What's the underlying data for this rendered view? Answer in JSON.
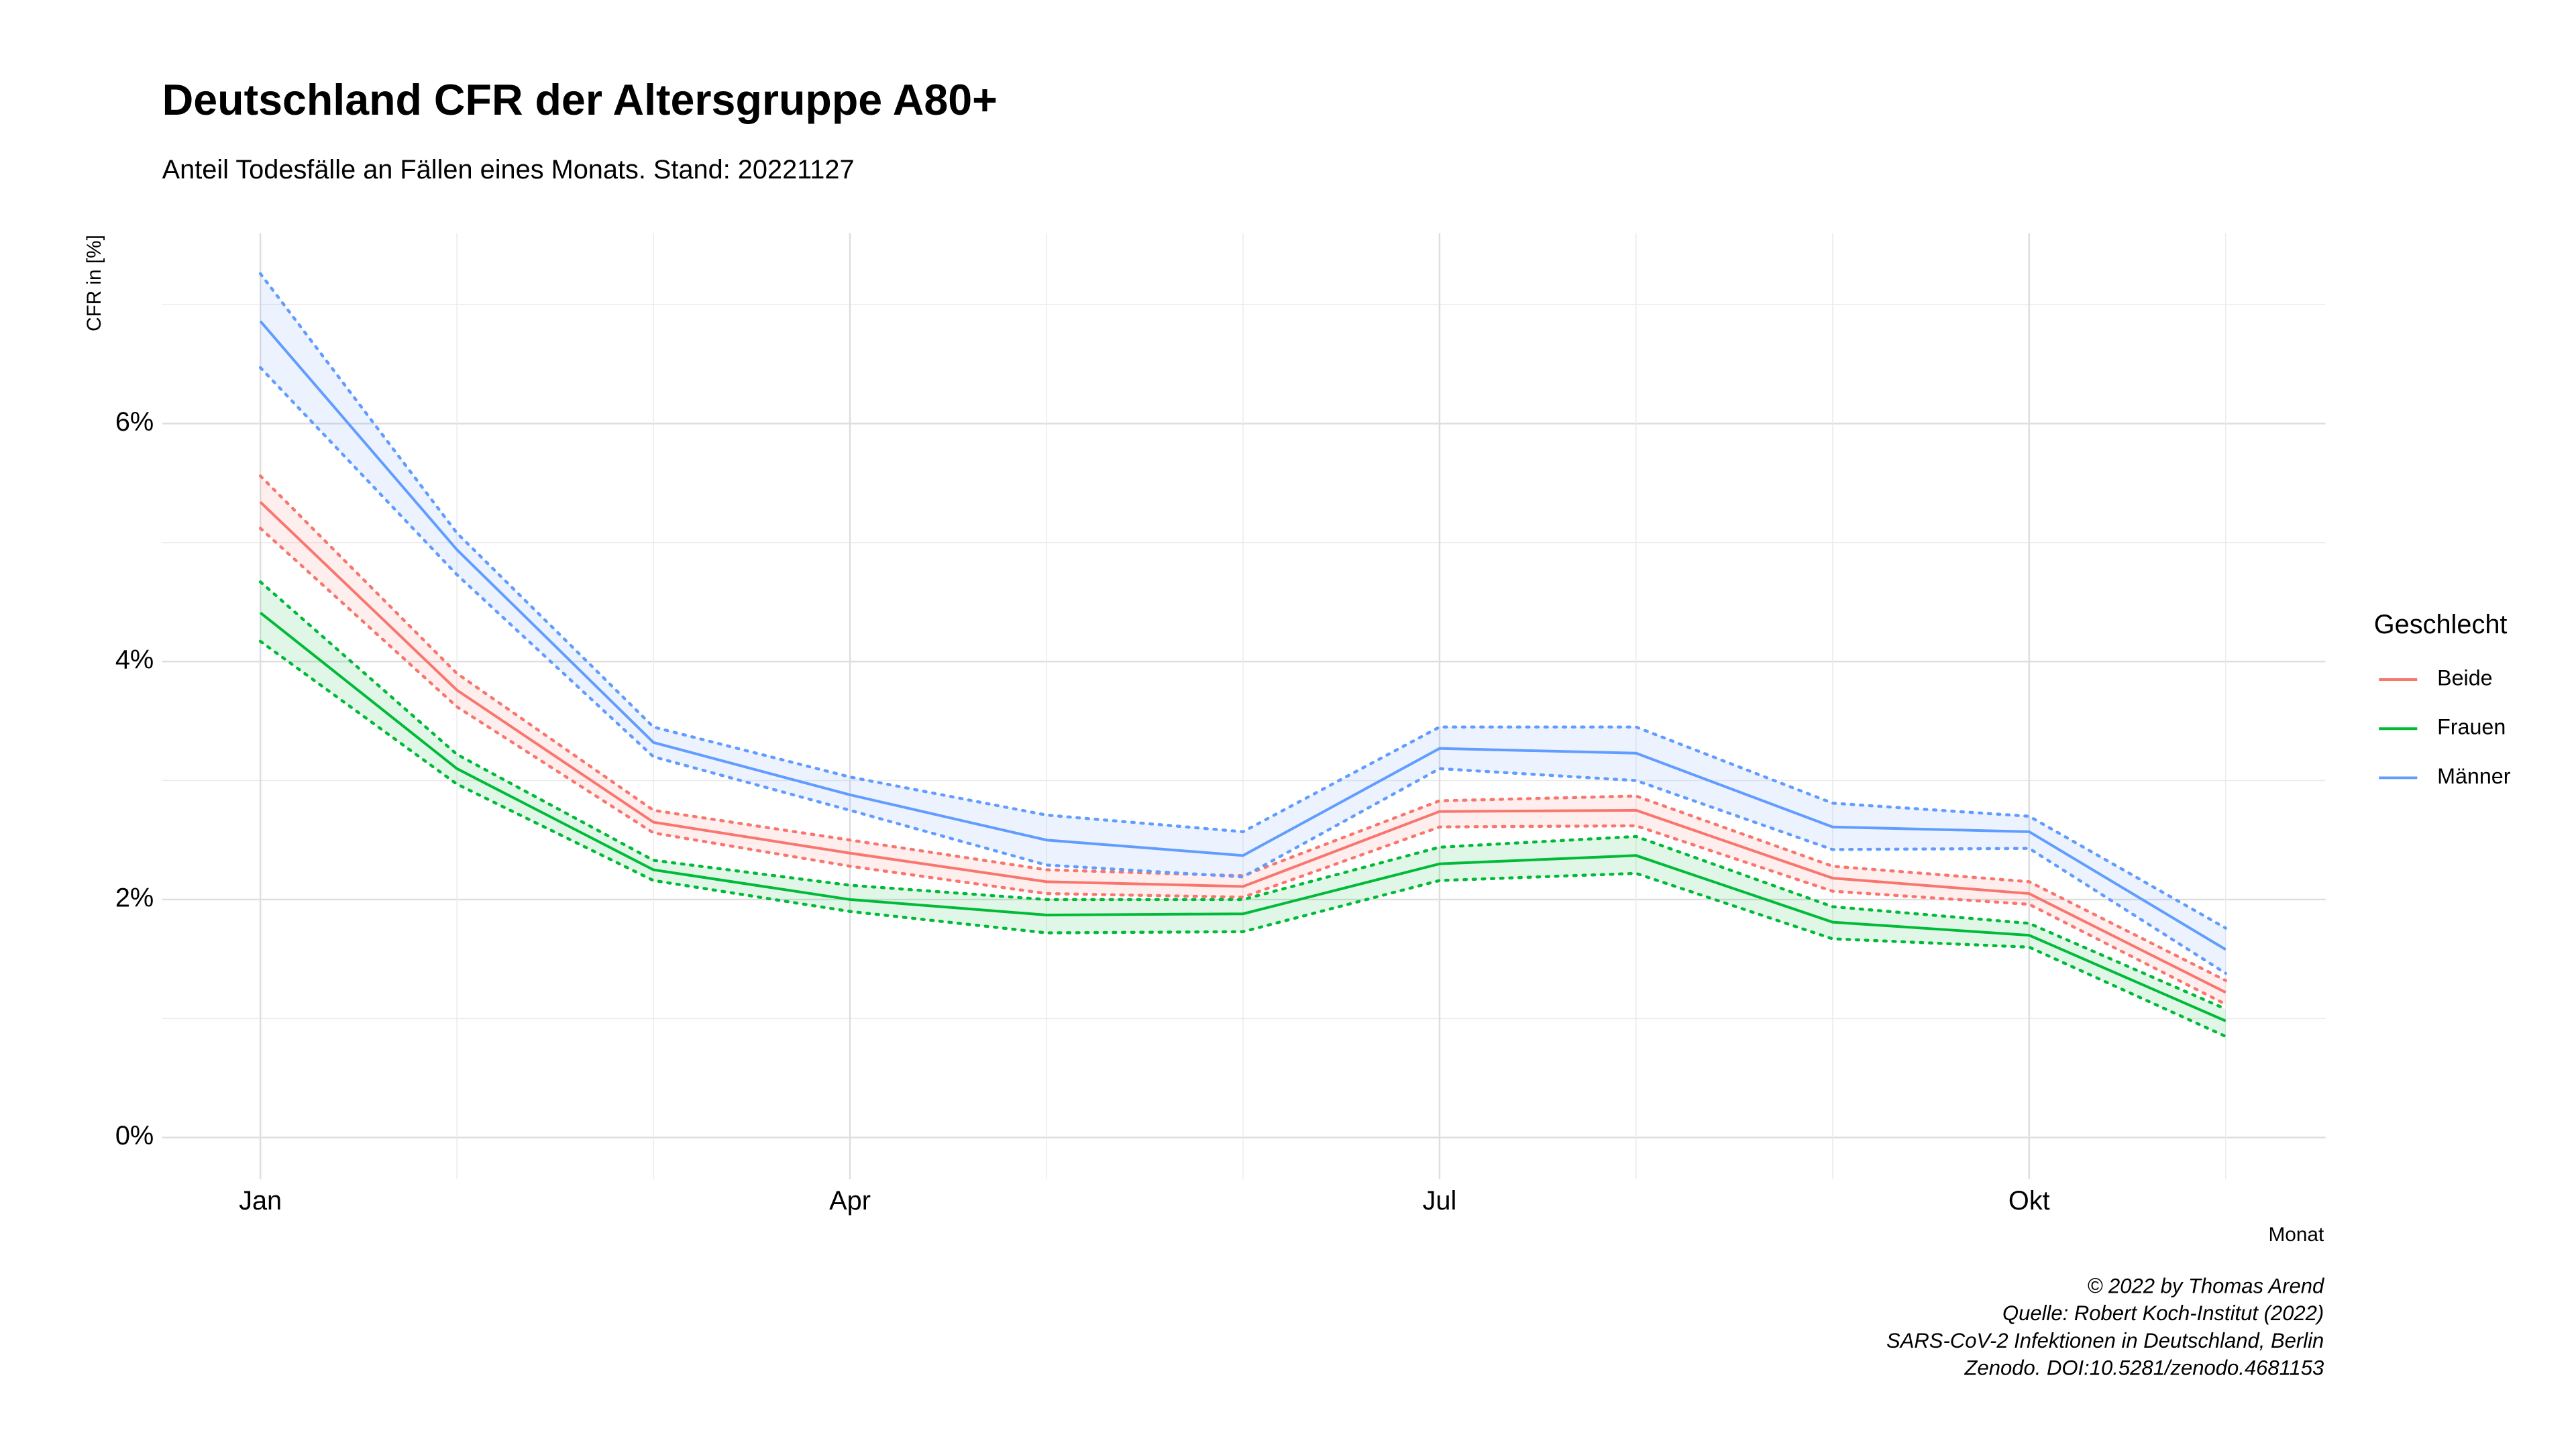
{
  "chart_data": {
    "type": "line",
    "title": "Deutschland CFR der Altersgruppe A80+",
    "subtitle": "Anteil Todesfälle an Fällen eines Monats. Stand: 20221127",
    "y_label": "CFR in [%]",
    "x_label": "Monat",
    "legend_title": "Geschlecht",
    "caption": [
      "© 2022 by Thomas Arend",
      "Quelle: Robert Koch-Institut (2022)",
      "SARS-CoV-2 Infektionen in Deutschland, Berlin",
      "Zenodo. DOI:10.5281/zenodo.4681153"
    ],
    "categories": [
      "Jan",
      null,
      null,
      "Apr",
      null,
      null,
      "Jul",
      null,
      null,
      "Okt",
      null
    ],
    "ylim": [
      -0.35,
      7.6
    ],
    "yticks": [
      {
        "value": 0,
        "label": "0%"
      },
      {
        "value": 2,
        "label": "2%"
      },
      {
        "value": 4,
        "label": "4%"
      },
      {
        "value": 6,
        "label": "6%"
      }
    ],
    "y_minor_ticks": [
      1,
      3,
      5,
      7
    ],
    "grid": true,
    "legend": "right",
    "series": [
      {
        "name": "Beide",
        "color": "#F8766D",
        "values": [
          5.34,
          3.76,
          2.65,
          2.39,
          2.15,
          2.11,
          2.74,
          2.75,
          2.18,
          2.05,
          1.22
        ],
        "upper": [
          5.56,
          3.9,
          2.75,
          2.5,
          2.25,
          2.2,
          2.83,
          2.87,
          2.28,
          2.15,
          1.32
        ],
        "lower": [
          5.12,
          3.62,
          2.56,
          2.28,
          2.05,
          2.02,
          2.61,
          2.62,
          2.07,
          1.96,
          1.12
        ]
      },
      {
        "name": "Frauen",
        "color": "#00BA38",
        "values": [
          4.41,
          3.1,
          2.25,
          2.0,
          1.87,
          1.88,
          2.3,
          2.37,
          1.81,
          1.7,
          0.98
        ],
        "upper": [
          4.67,
          3.22,
          2.33,
          2.12,
          2.0,
          2.0,
          2.44,
          2.53,
          1.94,
          1.8,
          1.08
        ],
        "lower": [
          4.17,
          2.97,
          2.16,
          1.9,
          1.72,
          1.73,
          2.16,
          2.22,
          1.67,
          1.6,
          0.85
        ]
      },
      {
        "name": "Männer",
        "color": "#619CFF",
        "values": [
          6.86,
          4.94,
          3.32,
          2.88,
          2.5,
          2.37,
          3.27,
          3.23,
          2.61,
          2.57,
          1.58
        ],
        "upper": [
          7.26,
          5.08,
          3.45,
          3.03,
          2.71,
          2.57,
          3.45,
          3.45,
          2.81,
          2.7,
          1.76
        ],
        "lower": [
          6.47,
          4.73,
          3.2,
          2.75,
          2.29,
          2.19,
          3.1,
          3.0,
          2.42,
          2.43,
          1.38
        ]
      }
    ]
  }
}
